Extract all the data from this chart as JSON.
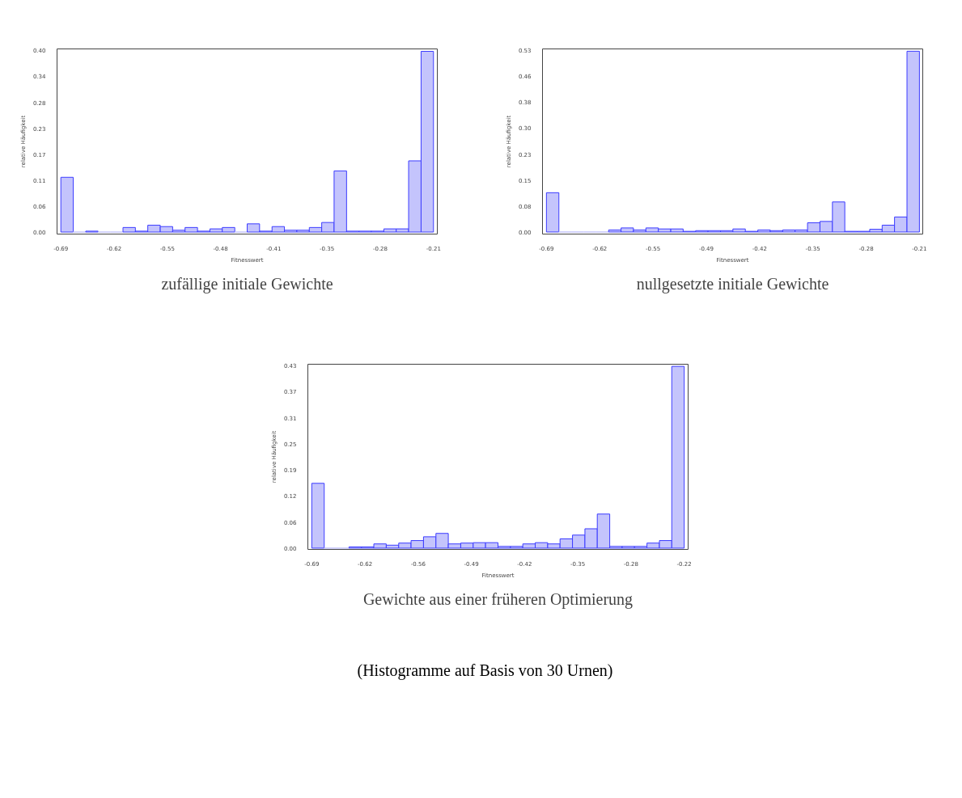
{
  "chart_data": [
    {
      "type": "histogram",
      "title": "zufällige initiale Gewichte",
      "xlabel": "Fitnesswert",
      "ylabel": "relative Häufigkeit",
      "color": "#c4c4fc",
      "bins": [
        -0.688,
        -0.6721,
        -0.6561,
        -0.6402,
        -0.6243,
        -0.6083,
        -0.5924,
        -0.5765,
        -0.5605,
        -0.5446,
        -0.5287,
        -0.5127,
        -0.4968,
        -0.4809,
        -0.4649,
        -0.449,
        -0.4331,
        -0.4171,
        -0.4012,
        -0.3853,
        -0.3693,
        -0.3534,
        -0.3375,
        -0.3215,
        -0.3056,
        -0.2897,
        -0.2737,
        -0.2578,
        -0.2419,
        -0.2259,
        -0.21
      ],
      "values": [
        0.12,
        0,
        0.002,
        0,
        0,
        0.01,
        0.002,
        0.015,
        0.012,
        0.004,
        0.01,
        0.002,
        0.007,
        0.01,
        0,
        0.018,
        0.002,
        0.012,
        0.004,
        0.004,
        0.01,
        0.021,
        0.134,
        0.002,
        0.002,
        0.002,
        0.007,
        0.007,
        0.156,
        0.396
      ],
      "xlim": [
        -0.6929,
        -0.2051
      ],
      "ylim": [
        -0.0044,
        0.4013
      ],
      "xticks": [
        {
          "value": -0.688,
          "label": "-0.69"
        },
        {
          "value": -0.6197,
          "label": "-0.62"
        },
        {
          "value": -0.5514,
          "label": "-0.55"
        },
        {
          "value": -0.4831,
          "label": "-0.48"
        },
        {
          "value": -0.4149,
          "label": "-0.41"
        },
        {
          "value": -0.3466,
          "label": "-0.35"
        },
        {
          "value": -0.2783,
          "label": "-0.28"
        },
        {
          "value": -0.21,
          "label": "-0.21"
        }
      ],
      "yticks": [
        {
          "value": 0,
          "label": "0.00"
        },
        {
          "value": 0.0569,
          "label": "0.06"
        },
        {
          "value": 0.1137,
          "label": "0.11"
        },
        {
          "value": 0.1706,
          "label": "0.17"
        },
        {
          "value": 0.2274,
          "label": "0.23"
        },
        {
          "value": 0.2843,
          "label": "0.28"
        },
        {
          "value": 0.3411,
          "label": "0.34"
        },
        {
          "value": 0.398,
          "label": "0.40"
        }
      ]
    },
    {
      "type": "histogram",
      "title": "nullgesetzte initiale Gewichte",
      "xlabel": "Fitnesswert",
      "ylabel": "relative Häufigkeit",
      "color": "#c4c4fc",
      "bins": [
        -0.6927,
        -0.6766,
        -0.6606,
        -0.6445,
        -0.6284,
        -0.6123,
        -0.5962,
        -0.5802,
        -0.5641,
        -0.548,
        -0.5319,
        -0.5159,
        -0.4998,
        -0.4837,
        -0.4676,
        -0.4516,
        -0.4355,
        -0.4194,
        -0.4033,
        -0.3872,
        -0.3712,
        -0.3551,
        -0.339,
        -0.3229,
        -0.3069,
        -0.2908,
        -0.2747,
        -0.2586,
        -0.2426,
        -0.2265,
        -0.2104
      ],
      "values": [
        0.115,
        0,
        0,
        0,
        0,
        0.006,
        0.012,
        0.006,
        0.012,
        0.009,
        0.009,
        0.002,
        0.004,
        0.004,
        0.004,
        0.009,
        0.002,
        0.006,
        0.004,
        0.006,
        0.006,
        0.027,
        0.031,
        0.088,
        0.002,
        0.002,
        0.008,
        0.02,
        0.044,
        0.529
      ],
      "xlim": [
        -0.6978,
        -0.2061
      ],
      "ylim": [
        -0.006,
        0.5358
      ],
      "xticks": [
        {
          "value": -0.6927,
          "label": "-0.69"
        },
        {
          "value": -0.6238,
          "label": "-0.62"
        },
        {
          "value": -0.5549,
          "label": "-0.55"
        },
        {
          "value": -0.486,
          "label": "-0.49"
        },
        {
          "value": -0.4171,
          "label": "-0.42"
        },
        {
          "value": -0.3482,
          "label": "-0.35"
        },
        {
          "value": -0.2793,
          "label": "-0.28"
        },
        {
          "value": -0.2104,
          "label": "-0.21"
        }
      ],
      "yticks": [
        {
          "value": 0,
          "label": "0.00"
        },
        {
          "value": 0.076,
          "label": "0.08"
        },
        {
          "value": 0.152,
          "label": "0.15"
        },
        {
          "value": 0.228,
          "label": "0.23"
        },
        {
          "value": 0.304,
          "label": "0.30"
        },
        {
          "value": 0.38,
          "label": "0.38"
        },
        {
          "value": 0.456,
          "label": "0.46"
        },
        {
          "value": 0.532,
          "label": "0.53"
        }
      ]
    },
    {
      "type": "histogram",
      "title": "Gewichte aus einer früheren Optimierung",
      "xlabel": "Fitnesswert",
      "ylabel": "relative Häufigkeit",
      "color": "#c4c4fc",
      "annotations": [
        "(Histogramme auf Basis von 30 Urnen)"
      ],
      "bins": [
        -0.692,
        -0.6761,
        -0.6603,
        -0.6444,
        -0.6285,
        -0.6127,
        -0.5968,
        -0.5809,
        -0.5651,
        -0.5492,
        -0.5333,
        -0.5175,
        -0.5016,
        -0.4857,
        -0.4699,
        -0.454,
        -0.4381,
        -0.4223,
        -0.4064,
        -0.3905,
        -0.3747,
        -0.3588,
        -0.3429,
        -0.3271,
        -0.3112,
        -0.2953,
        -0.2795,
        -0.2636,
        -0.2477,
        -0.2319,
        -0.216
      ],
      "values": [
        0.154,
        0,
        0,
        0.003,
        0.003,
        0.01,
        0.007,
        0.012,
        0.018,
        0.027,
        0.035,
        0.01,
        0.012,
        0.013,
        0.013,
        0.004,
        0.004,
        0.01,
        0.013,
        0.01,
        0.022,
        0.031,
        0.046,
        0.081,
        0.004,
        0.004,
        0.004,
        0.012,
        0.018,
        0.432
      ],
      "xlim": [
        -0.697,
        -0.211
      ],
      "ylim": [
        -0.003,
        0.437
      ],
      "xticks": [
        {
          "value": -0.692,
          "label": "-0.69"
        },
        {
          "value": -0.624,
          "label": "-0.62"
        },
        {
          "value": -0.556,
          "label": "-0.56"
        },
        {
          "value": -0.488,
          "label": "-0.49"
        },
        {
          "value": -0.42,
          "label": "-0.42"
        },
        {
          "value": -0.352,
          "label": "-0.35"
        },
        {
          "value": -0.284,
          "label": "-0.28"
        },
        {
          "value": -0.216,
          "label": "-0.22"
        }
      ],
      "yticks": [
        {
          "value": 0,
          "label": "0.00"
        },
        {
          "value": 0.062,
          "label": "0.06"
        },
        {
          "value": 0.124,
          "label": "0.12"
        },
        {
          "value": 0.186,
          "label": "0.19"
        },
        {
          "value": 0.248,
          "label": "0.25"
        },
        {
          "value": 0.31,
          "label": "0.31"
        },
        {
          "value": 0.372,
          "label": "0.37"
        },
        {
          "value": 0.434,
          "label": "0.43"
        }
      ]
    }
  ]
}
